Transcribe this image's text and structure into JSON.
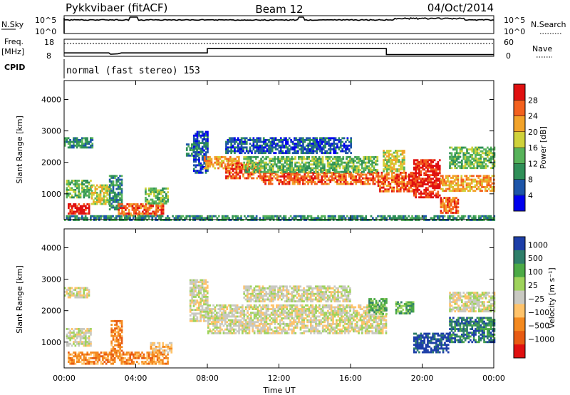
{
  "header": {
    "radar": "Pykkvibaer (fitACF)",
    "beam": "Beam 12",
    "date": "04/Oct/2014"
  },
  "noise_panel": {
    "left_label": "N.Sky",
    "right_label": "N.Search",
    "left_ticks": [
      "10^5",
      "10^0"
    ],
    "right_ticks": [
      "10^5",
      "10^0"
    ]
  },
  "freq_panel": {
    "left_label_1": "Freq.",
    "left_label_2": "[MHz]",
    "left_ticks": [
      "18",
      "8"
    ],
    "right_label": "Nave",
    "right_ticks": [
      "60",
      "0"
    ],
    "freq_mhz": [
      [
        0,
        10.0
      ],
      [
        2.5,
        10.0
      ],
      [
        2.6,
        9.2
      ],
      [
        3.0,
        9.5
      ],
      [
        3.2,
        10.0
      ],
      [
        8.0,
        10.0
      ],
      [
        8.0,
        12.5
      ],
      [
        18.0,
        12.5
      ],
      [
        18.0,
        9.0
      ],
      [
        24.0,
        9.0
      ]
    ],
    "nave_level_fraction": 0.75
  },
  "cpid_panel": {
    "label": "CPID",
    "mode": "normal (fast stereo) 153"
  },
  "chart_data": [
    {
      "type": "heatmap",
      "name": "power",
      "ylabel": "Slant Range [km]",
      "y_ticks": [
        "1000",
        "2000",
        "3000",
        "4000"
      ],
      "ylim": [
        180,
        4600
      ],
      "xlim": [
        0,
        24
      ],
      "colorbar": {
        "label": "Power [dB]",
        "ticks": [
          "4",
          "8",
          "12",
          "16",
          "20",
          "24",
          "28"
        ],
        "colors": [
          "#0000ee",
          "#1d55a8",
          "#2f8f58",
          "#57b35a",
          "#cfd23a",
          "#f2a32a",
          "#f3611e",
          "#e01010"
        ]
      },
      "regions": [
        {
          "t": [
            0.0,
            1.6
          ],
          "r": [
            2450,
            2800
          ],
          "level": 2
        },
        {
          "t": [
            0.1,
            1.5
          ],
          "r": [
            900,
            1450
          ],
          "level": 3
        },
        {
          "t": [
            0.2,
            1.4
          ],
          "r": [
            400,
            700
          ],
          "level": 7
        },
        {
          "t": [
            1.5,
            2.6
          ],
          "r": [
            700,
            1300
          ],
          "level": 4
        },
        {
          "t": [
            2.5,
            3.2
          ],
          "r": [
            500,
            1600
          ],
          "level": 2
        },
        {
          "t": [
            3.0,
            5.5
          ],
          "r": [
            300,
            700
          ],
          "level": 6
        },
        {
          "t": [
            4.5,
            5.8
          ],
          "r": [
            700,
            1200
          ],
          "level": 3
        },
        {
          "t": [
            6.8,
            7.5
          ],
          "r": [
            2200,
            2600
          ],
          "level": 2
        },
        {
          "t": [
            7.2,
            8.0
          ],
          "r": [
            1700,
            3000
          ],
          "level": 1
        },
        {
          "t": [
            7.8,
            9.8
          ],
          "r": [
            1800,
            2200
          ],
          "level": 5
        },
        {
          "t": [
            9.0,
            11.0
          ],
          "r": [
            1500,
            2000
          ],
          "level": 6
        },
        {
          "t": [
            11.0,
            17.5
          ],
          "r": [
            1300,
            1700
          ],
          "level": 6
        },
        {
          "t": [
            10.0,
            17.5
          ],
          "r": [
            1700,
            2200
          ],
          "level": 3
        },
        {
          "t": [
            9.0,
            16.0
          ],
          "r": [
            2300,
            2800
          ],
          "level": 1
        },
        {
          "t": [
            17.5,
            19.5
          ],
          "r": [
            1100,
            1700
          ],
          "level": 6
        },
        {
          "t": [
            17.8,
            19.0
          ],
          "r": [
            1700,
            2400
          ],
          "level": 4
        },
        {
          "t": [
            19.5,
            21.0
          ],
          "r": [
            900,
            2100
          ],
          "level": 7
        },
        {
          "t": [
            21.0,
            22.0
          ],
          "r": [
            400,
            900
          ],
          "level": 6
        },
        {
          "t": [
            21.0,
            24.0
          ],
          "r": [
            1100,
            1600
          ],
          "level": 5
        },
        {
          "t": [
            21.5,
            24.0
          ],
          "r": [
            1800,
            2500
          ],
          "level": 3
        },
        {
          "t": [
            0.0,
            24.0
          ],
          "r": [
            200,
            320
          ],
          "level": 2
        }
      ]
    },
    {
      "type": "heatmap",
      "name": "velocity",
      "ylabel": "Slant Range [km]",
      "y_ticks": [
        "1000",
        "2000",
        "3000",
        "4000"
      ],
      "ylim": [
        180,
        4600
      ],
      "xlim": [
        0,
        24
      ],
      "x_ticks": [
        "00:00",
        "04:00",
        "08:00",
        "12:00",
        "16:00",
        "20:00",
        "00:00"
      ],
      "xlabel": "Time UT",
      "colorbar": {
        "label": "Velocity [m s⁻¹]",
        "ticks": [
          "1000",
          "500",
          "100",
          "25",
          "−25",
          "−100",
          "−500",
          "−1000"
        ],
        "colors": [
          "#1d3fa8",
          "#2f7f6a",
          "#4caa46",
          "#9fd35c",
          "#c9c9c2",
          "#ffc36a",
          "#f4891f",
          "#e85b12",
          "#e01010"
        ]
      },
      "regions": [
        {
          "t": [
            0.0,
            1.4
          ],
          "r": [
            2450,
            2750
          ],
          "level": 4
        },
        {
          "t": [
            0.1,
            1.5
          ],
          "r": [
            900,
            1450
          ],
          "level": 4
        },
        {
          "t": [
            0.2,
            5.8
          ],
          "r": [
            300,
            700
          ],
          "level": 6
        },
        {
          "t": [
            2.6,
            3.2
          ],
          "r": [
            700,
            1700
          ],
          "level": 6
        },
        {
          "t": [
            4.8,
            6.0
          ],
          "r": [
            700,
            1000
          ],
          "level": 5
        },
        {
          "t": [
            7.0,
            8.0
          ],
          "r": [
            1700,
            3000
          ],
          "level": 4
        },
        {
          "t": [
            8.0,
            18.0
          ],
          "r": [
            1300,
            2200
          ],
          "level": 4
        },
        {
          "t": [
            10.0,
            16.0
          ],
          "r": [
            2300,
            2800
          ],
          "level": 4
        },
        {
          "t": [
            17.0,
            18.0
          ],
          "r": [
            1900,
            2400
          ],
          "level": 2
        },
        {
          "t": [
            18.5,
            19.5
          ],
          "r": [
            1900,
            2300
          ],
          "level": 2
        },
        {
          "t": [
            19.5,
            21.5
          ],
          "r": [
            700,
            1300
          ],
          "level": 0
        },
        {
          "t": [
            21.5,
            24.0
          ],
          "r": [
            1000,
            1800
          ],
          "level": 1
        },
        {
          "t": [
            21.5,
            24.0
          ],
          "r": [
            2000,
            2600
          ],
          "level": 4
        }
      ]
    }
  ]
}
